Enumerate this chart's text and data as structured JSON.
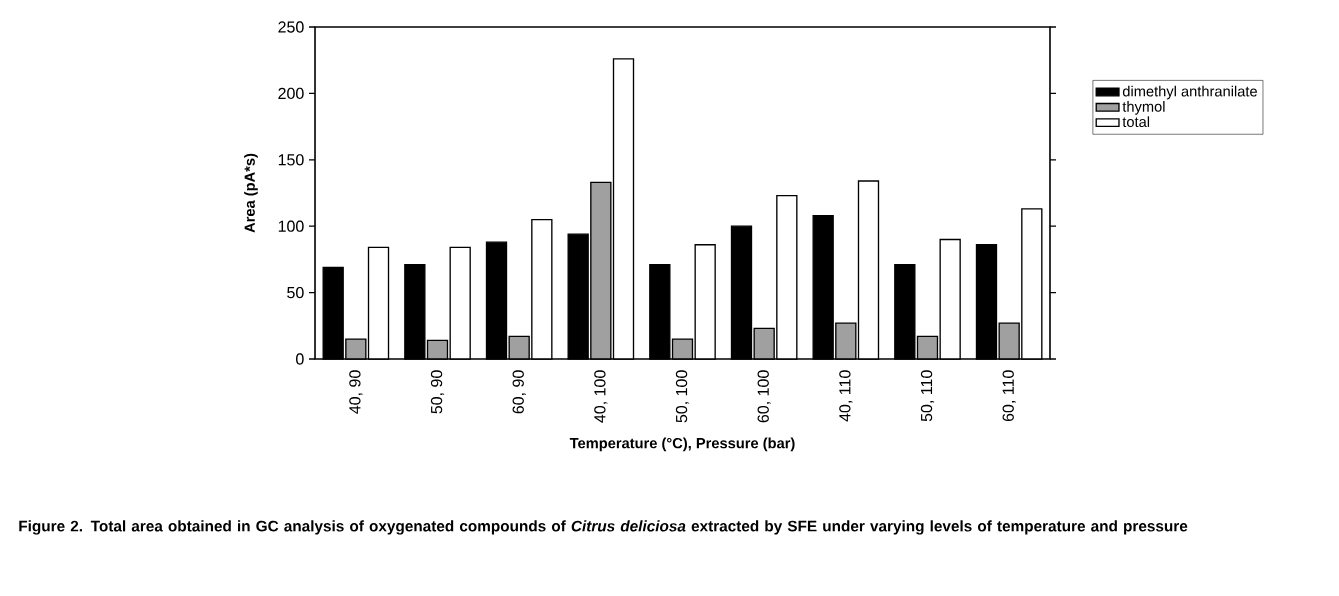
{
  "chart_data": {
    "type": "bar",
    "categories": [
      "40, 90",
      "50, 90",
      "60, 90",
      "40, 100",
      "50, 100",
      "60, 100",
      "40, 110",
      "50, 110",
      "60, 110"
    ],
    "series": [
      {
        "name": "dimethyl anthranilate",
        "color": "#000000",
        "values": [
          69,
          71,
          88,
          94,
          71,
          100,
          108,
          71,
          86
        ]
      },
      {
        "name": "thymol",
        "color": "#a0a0a0",
        "values": [
          15,
          14,
          17,
          133,
          15,
          23,
          27,
          17,
          27
        ]
      },
      {
        "name": "total",
        "color": "#ffffff",
        "values": [
          84,
          84,
          105,
          226,
          86,
          123,
          134,
          90,
          113
        ]
      }
    ],
    "ylim": [
      0,
      250
    ],
    "yticks": [
      0,
      50,
      100,
      150,
      200,
      250
    ],
    "xlabel": "Temperature (°C), Pressure (bar)",
    "ylabel": "Area (pA*s)",
    "legend": "top right",
    "grid": false,
    "annotations": [
      "Figure 2. Total area obtained in GC analysis of oxygenated compounds of *Citrus deliciosa* extracted by SFE under varying levels of temperature and pressure"
    ]
  }
}
